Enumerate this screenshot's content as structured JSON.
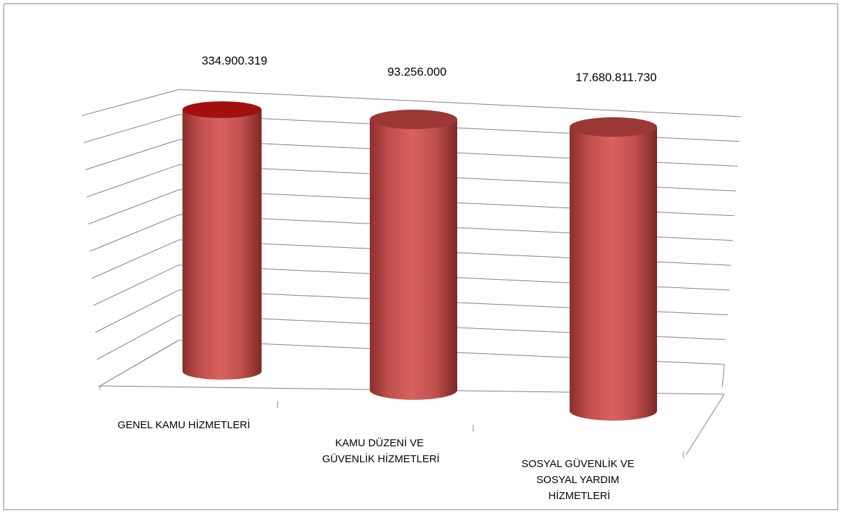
{
  "chart_data": {
    "type": "bar",
    "style": "3d-cylinder",
    "categories": [
      [
        "GENEL KAMU HİZMETLERİ"
      ],
      [
        "KAMU DÜZENİ VE",
        "GÜVENLİK HİZMETLERİ"
      ],
      [
        "SOSYAL GÜVENLİK VE",
        "SOSYAL YARDIM",
        "HİZMETLERİ"
      ]
    ],
    "values": [
      334900319,
      93256000,
      17680811730
    ],
    "data_labels": [
      "334.900.319",
      "93.256.000",
      "17.680.811.730"
    ],
    "title": "",
    "xlabel": "",
    "ylabel": "",
    "grid": true,
    "legend": "none",
    "colors": {
      "bar": "#c0504d",
      "bar_highlight": "#d9615e",
      "bar_shadow": "#8b2e2c",
      "top_first": "#a30f0f",
      "top": "#9b3836",
      "grid": "#7f7f7f"
    }
  }
}
